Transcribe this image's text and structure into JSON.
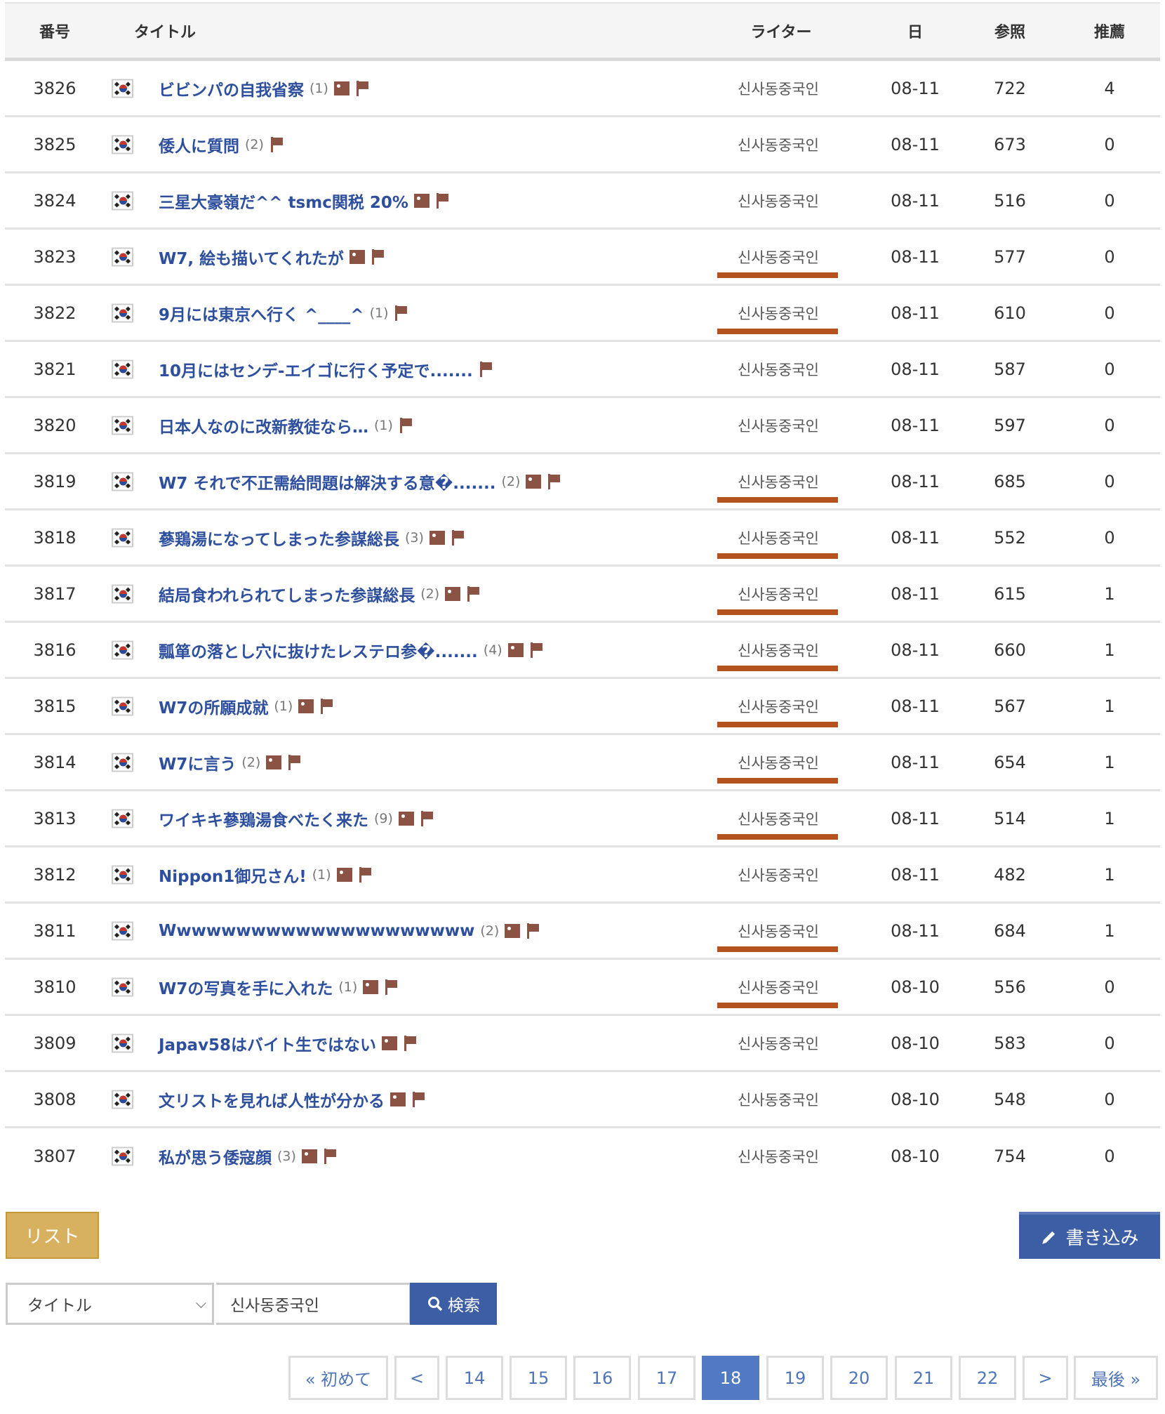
{
  "header": {
    "number": "番号",
    "title": "タイトル",
    "writer": "ライター",
    "date": "日",
    "views": "参照",
    "recommend": "推薦"
  },
  "rows": [
    {
      "number": "3826",
      "title": "ビビンパの自我省察",
      "comments": "(1)",
      "image": true,
      "writer": "신사동중국인",
      "date": "08-11",
      "views": "722",
      "recommend": "4",
      "underline": false
    },
    {
      "number": "3825",
      "title": "倭人に質問",
      "comments": "(2)",
      "image": false,
      "writer": "신사동중국인",
      "date": "08-11",
      "views": "673",
      "recommend": "0",
      "underline": false
    },
    {
      "number": "3824",
      "title": "三星大豪嶺だ^^ tsmc関税 20%",
      "comments": "",
      "image": true,
      "writer": "신사동중국인",
      "date": "08-11",
      "views": "516",
      "recommend": "0",
      "underline": false
    },
    {
      "number": "3823",
      "title": "W7, 絵も描いてくれたが",
      "comments": "",
      "image": true,
      "writer": "신사동중국인",
      "date": "08-11",
      "views": "577",
      "recommend": "0",
      "underline": true
    },
    {
      "number": "3822",
      "title": "9月には東京へ行く ^____^",
      "comments": "(1)",
      "image": false,
      "writer": "신사동중국인",
      "date": "08-11",
      "views": "610",
      "recommend": "0",
      "underline": true
    },
    {
      "number": "3821",
      "title": "10月にはセンデ-エイゴに行く予定で.......",
      "comments": "",
      "image": false,
      "writer": "신사동중국인",
      "date": "08-11",
      "views": "587",
      "recommend": "0",
      "underline": false
    },
    {
      "number": "3820",
      "title": "日本人なのに改新教徒なら…",
      "comments": "(1)",
      "image": false,
      "writer": "신사동중국인",
      "date": "08-11",
      "views": "597",
      "recommend": "0",
      "underline": false
    },
    {
      "number": "3819",
      "title": "W7 それで不正需給問題は解決する意�.......",
      "comments": "(2)",
      "image": true,
      "writer": "신사동중국인",
      "date": "08-11",
      "views": "685",
      "recommend": "0",
      "underline": true
    },
    {
      "number": "3818",
      "title": "蔘鶏湯になってしまった参謀総長",
      "comments": "(3)",
      "image": true,
      "writer": "신사동중국인",
      "date": "08-11",
      "views": "552",
      "recommend": "0",
      "underline": true
    },
    {
      "number": "3817",
      "title": "結局食われられてしまった参謀総長",
      "comments": "(2)",
      "image": true,
      "writer": "신사동중국인",
      "date": "08-11",
      "views": "615",
      "recommend": "1",
      "underline": true
    },
    {
      "number": "3816",
      "title": "瓢箪の落とし穴に抜けたレステロ参�.......",
      "comments": "(4)",
      "image": true,
      "writer": "신사동중국인",
      "date": "08-11",
      "views": "660",
      "recommend": "1",
      "underline": true
    },
    {
      "number": "3815",
      "title": "W7の所願成就",
      "comments": "(1)",
      "image": true,
      "writer": "신사동중국인",
      "date": "08-11",
      "views": "567",
      "recommend": "1",
      "underline": true
    },
    {
      "number": "3814",
      "title": "W7に言う",
      "comments": "(2)",
      "image": true,
      "writer": "신사동중국인",
      "date": "08-11",
      "views": "654",
      "recommend": "1",
      "underline": true
    },
    {
      "number": "3813",
      "title": "ワイキキ蔘鶏湯食べたく来た",
      "comments": "(9)",
      "image": true,
      "writer": "신사동중국인",
      "date": "08-11",
      "views": "514",
      "recommend": "1",
      "underline": true
    },
    {
      "number": "3812",
      "title": "Nippon1御兄さん!",
      "comments": "(1)",
      "image": true,
      "writer": "신사동중국인",
      "date": "08-11",
      "views": "482",
      "recommend": "1",
      "underline": false
    },
    {
      "number": "3811",
      "title": "Wwwwwwwwwwwwwwwwwwwww",
      "comments": "(2)",
      "image": true,
      "writer": "신사동중국인",
      "date": "08-11",
      "views": "684",
      "recommend": "1",
      "underline": true
    },
    {
      "number": "3810",
      "title": "W7の写真を手に入れた",
      "comments": "(1)",
      "image": true,
      "writer": "신사동중국인",
      "date": "08-10",
      "views": "556",
      "recommend": "0",
      "underline": true
    },
    {
      "number": "3809",
      "title": "Japav58はバイト生ではない",
      "comments": "",
      "image": true,
      "writer": "신사동중국인",
      "date": "08-10",
      "views": "583",
      "recommend": "0",
      "underline": false
    },
    {
      "number": "3808",
      "title": "文リストを見れば人性が分かる",
      "comments": "",
      "image": true,
      "writer": "신사동중국인",
      "date": "08-10",
      "views": "548",
      "recommend": "0",
      "underline": false
    },
    {
      "number": "3807",
      "title": "私が思う倭寇顔",
      "comments": "(3)",
      "image": true,
      "writer": "신사동중국인",
      "date": "08-10",
      "views": "754",
      "recommend": "0",
      "underline": false
    }
  ],
  "buttons": {
    "list": "リスト",
    "write": "書き込み"
  },
  "search": {
    "field": "タイトル",
    "query": "신사동중국인",
    "button": "検索"
  },
  "pagination": {
    "first": "« 初めて",
    "prev": "<",
    "pages": [
      "14",
      "15",
      "16",
      "17",
      "18",
      "19",
      "20",
      "21",
      "22"
    ],
    "current": "18",
    "next": ">",
    "last": "最後 »"
  },
  "colors": {
    "link": "#2d4f9e",
    "icon": "#8a5343",
    "underline": "#b5531f",
    "list_button": "#d7b15f",
    "primary": "#3c5ea5",
    "active_page": "#527ac4"
  }
}
